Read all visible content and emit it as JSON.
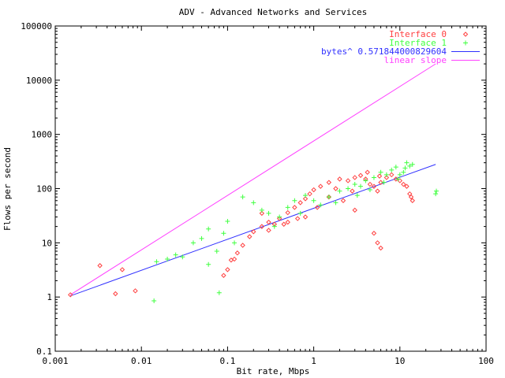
{
  "chart_data": {
    "type": "scatter",
    "title": "ADV - Advanced Networks and Services",
    "xlabel": "Bit rate, Mbps",
    "ylabel": "Flows per second",
    "xscale": "log",
    "yscale": "log",
    "xlim": [
      0.001,
      100
    ],
    "ylim": [
      0.1,
      100000
    ],
    "x_ticks": [
      "0.001",
      "0.01",
      "0.1",
      "1",
      "10",
      "100"
    ],
    "y_ticks": [
      "0.1",
      "1",
      "10",
      "100",
      "1000",
      "10000",
      "100000"
    ],
    "legend_position": "top-right",
    "series": [
      {
        "name": "Interface 0",
        "marker": "diamond",
        "color": "#ff4040",
        "points": [
          [
            0.0015,
            1.1
          ],
          [
            0.0033,
            3.8
          ],
          [
            0.005,
            1.15
          ],
          [
            0.006,
            3.2
          ],
          [
            0.0085,
            1.3
          ],
          [
            0.09,
            2.5
          ],
          [
            0.1,
            3.2
          ],
          [
            0.11,
            4.8
          ],
          [
            0.13,
            6.5
          ],
          [
            0.15,
            9
          ],
          [
            0.18,
            13
          ],
          [
            0.2,
            16
          ],
          [
            0.25,
            20
          ],
          [
            0.3,
            24
          ],
          [
            0.35,
            22
          ],
          [
            0.4,
            28
          ],
          [
            0.5,
            36
          ],
          [
            0.6,
            45
          ],
          [
            0.7,
            55
          ],
          [
            0.8,
            65
          ],
          [
            0.9,
            80
          ],
          [
            1.0,
            95
          ],
          [
            1.2,
            110
          ],
          [
            1.5,
            130
          ],
          [
            2.0,
            150
          ],
          [
            2.5,
            140
          ],
          [
            3.0,
            160
          ],
          [
            3.5,
            175
          ],
          [
            4.0,
            150
          ],
          [
            4.5,
            120
          ],
          [
            5.0,
            110
          ],
          [
            5.5,
            90
          ],
          [
            6.0,
            130
          ],
          [
            7.0,
            160
          ],
          [
            8.0,
            180
          ],
          [
            9.0,
            150
          ],
          [
            10,
            140
          ],
          [
            11,
            120
          ],
          [
            12,
            110
          ],
          [
            13,
            80
          ],
          [
            13.5,
            70
          ],
          [
            14,
            60
          ],
          [
            5.0,
            15
          ],
          [
            5.5,
            10
          ],
          [
            6.0,
            8
          ],
          [
            0.25,
            35
          ],
          [
            0.5,
            24
          ],
          [
            0.8,
            30
          ],
          [
            1.5,
            70
          ],
          [
            2.2,
            60
          ],
          [
            3.0,
            40
          ],
          [
            1.8,
            100
          ],
          [
            2.8,
            90
          ],
          [
            4.2,
            200
          ],
          [
            5.8,
            170
          ],
          [
            0.12,
            5
          ],
          [
            0.3,
            17
          ],
          [
            0.45,
            22
          ],
          [
            0.65,
            28
          ],
          [
            1.1,
            45
          ]
        ]
      },
      {
        "name": "Interface 1",
        "marker": "plus",
        "color": "#40ff40",
        "points": [
          [
            0.014,
            0.85
          ],
          [
            0.015,
            4.5
          ],
          [
            0.02,
            5
          ],
          [
            0.025,
            6
          ],
          [
            0.03,
            5.5
          ],
          [
            0.04,
            10
          ],
          [
            0.05,
            12
          ],
          [
            0.06,
            18
          ],
          [
            0.075,
            7
          ],
          [
            0.08,
            1.2
          ],
          [
            0.09,
            15
          ],
          [
            0.1,
            25
          ],
          [
            0.15,
            70
          ],
          [
            0.2,
            55
          ],
          [
            0.25,
            40
          ],
          [
            0.3,
            35
          ],
          [
            0.4,
            30
          ],
          [
            0.5,
            45
          ],
          [
            0.6,
            60
          ],
          [
            0.8,
            75
          ],
          [
            1.0,
            60
          ],
          [
            1.2,
            50
          ],
          [
            1.5,
            70
          ],
          [
            2.0,
            90
          ],
          [
            2.5,
            100
          ],
          [
            3.0,
            120
          ],
          [
            3.5,
            110
          ],
          [
            4.0,
            140
          ],
          [
            5.0,
            160
          ],
          [
            6.0,
            200
          ],
          [
            7.0,
            180
          ],
          [
            8.0,
            220
          ],
          [
            9.0,
            250
          ],
          [
            10,
            180
          ],
          [
            11,
            200
          ],
          [
            12,
            300
          ],
          [
            13,
            260
          ],
          [
            14,
            280
          ],
          [
            26,
            80
          ],
          [
            26.5,
            90
          ],
          [
            0.06,
            4
          ],
          [
            0.12,
            10
          ],
          [
            0.35,
            20
          ],
          [
            0.7,
            35
          ],
          [
            1.8,
            55
          ],
          [
            3.2,
            75
          ],
          [
            4.5,
            95
          ],
          [
            6.5,
            130
          ],
          [
            9.5,
            150
          ],
          [
            11.5,
            240
          ]
        ]
      }
    ],
    "lines": [
      {
        "name": "bytes^ 0.571844000829604",
        "color": "#3030ff",
        "from": [
          0.0015,
          1.05
        ],
        "to": [
          26,
          280
        ]
      },
      {
        "name": "linear slope",
        "color": "#ff40ff",
        "from": [
          0.0015,
          1.1
        ],
        "to": [
          26,
          20000
        ]
      }
    ]
  }
}
